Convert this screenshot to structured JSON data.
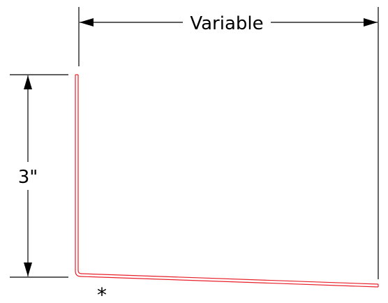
{
  "dimensions": {
    "width_label": "Variable",
    "height_label": "3\""
  },
  "note_marker": "*",
  "colors": {
    "profile": "#e8202a",
    "dimension_lines": "#000000",
    "background": "#ffffff"
  }
}
